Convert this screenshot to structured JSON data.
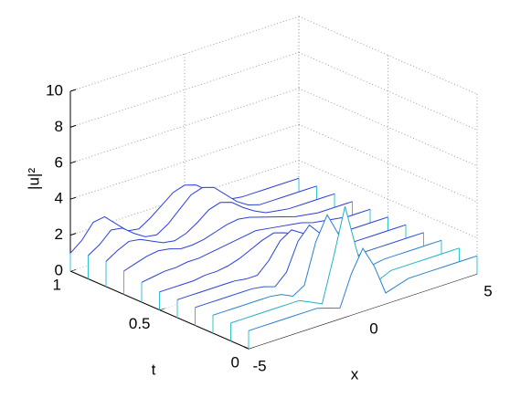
{
  "chart_data": {
    "type": "waterfall",
    "xlabel": "x",
    "ylabel": "t",
    "zlabel": "|u|²",
    "x": [
      -5,
      -4.5,
      -4,
      -3.5,
      -3,
      -2.5,
      -2,
      -1.5,
      -1,
      -0.5,
      0,
      0.5,
      1,
      1.5,
      2,
      2.5,
      3,
      3.5,
      4,
      4.5,
      5
    ],
    "xlim": [
      -5,
      5
    ],
    "xticks": [
      -5,
      0,
      5
    ],
    "ylim": [
      0,
      1
    ],
    "yticks": [
      0,
      0.5,
      1
    ],
    "zlim": [
      0,
      10
    ],
    "zticks": [
      0,
      2,
      4,
      6,
      8,
      10
    ],
    "grid": true,
    "edge_color": "#33c4d0",
    "series": [
      {
        "t": 1,
        "color": "#2b3fd8",
        "values": [
          1.0,
          1.5,
          2.3,
          2.4,
          1.8,
          1.2,
          1.1,
          1.5,
          2.0,
          2.5,
          2.7,
          2.5,
          2.0,
          1.5,
          1.1,
          1,
          1,
          1,
          1,
          1,
          1
        ]
      },
      {
        "t": 0.9,
        "color": "#2b3fd8",
        "values": [
          1.3,
          1.7,
          2.3,
          2.2,
          1.7,
          1.3,
          1.2,
          1.6,
          2.2,
          2.8,
          3.0,
          2.8,
          2.2,
          1.6,
          1.2,
          1,
          1,
          1,
          1,
          1,
          1
        ]
      },
      {
        "t": 0.8,
        "color": "#2b3fd8",
        "values": [
          1.4,
          1.8,
          2.1,
          2.0,
          1.7,
          1.4,
          1.3,
          1.5,
          1.9,
          2.4,
          2.6,
          2.4,
          1.9,
          1.5,
          1.2,
          1.1,
          1,
          1,
          1,
          1,
          1
        ]
      },
      {
        "t": 0.7,
        "color": "#2b3fd8",
        "values": [
          1.3,
          1.5,
          1.7,
          1.8,
          1.7,
          1.5,
          1.5,
          1.6,
          1.8,
          2.0,
          2.1,
          2.0,
          1.8,
          1.6,
          1.4,
          1.2,
          1.1,
          1,
          1,
          1,
          1
        ]
      },
      {
        "t": 0.6,
        "color": "#2b3fd8",
        "values": [
          1.1,
          1.2,
          1.3,
          1.3,
          1.4,
          1.4,
          1.5,
          1.6,
          1.7,
          1.8,
          1.9,
          1.8,
          1.7,
          1.6,
          1.5,
          1.3,
          1.2,
          1.1,
          1,
          1,
          1
        ]
      },
      {
        "t": 0.5,
        "color": "#2b3fd8",
        "values": [
          1,
          1,
          1,
          1,
          1.1,
          1.1,
          1.2,
          1.4,
          1.7,
          2.0,
          2.2,
          2.0,
          1.7,
          1.4,
          1.2,
          1.1,
          1,
          1,
          1,
          1,
          1
        ]
      },
      {
        "t": 0.4,
        "color": "#2b3fd8",
        "values": [
          1,
          1,
          1,
          1,
          1,
          1,
          0.9,
          0.9,
          1.5,
          2.4,
          2.8,
          2.4,
          1.5,
          0.9,
          0.9,
          1,
          1,
          1,
          1,
          1,
          1
        ]
      },
      {
        "t": 0.3,
        "color": "#2b50d8",
        "values": [
          1,
          1,
          1,
          1,
          1,
          1,
          0.9,
          0.7,
          1.3,
          2.8,
          3.5,
          2.8,
          1.3,
          0.7,
          0.9,
          1,
          1,
          1,
          1,
          1,
          1
        ]
      },
      {
        "t": 0.2,
        "color": "#2a80d0",
        "values": [
          1,
          1,
          1,
          1,
          1,
          1,
          0.9,
          0.6,
          1.0,
          3.2,
          4.5,
          3.2,
          1.0,
          0.6,
          0.9,
          1,
          1,
          1,
          1,
          1,
          1
        ]
      },
      {
        "t": 0.1,
        "color": "#22b0c0",
        "values": [
          1,
          1,
          1,
          1,
          1,
          1,
          1,
          0.7,
          0.4,
          2.8,
          5.4,
          2.8,
          0.4,
          0.7,
          1,
          1,
          1,
          1,
          1,
          1,
          1
        ]
      },
      {
        "t": 0,
        "color": "#2a80d0",
        "values": [
          1,
          1,
          1,
          1,
          1,
          1,
          1,
          0.8,
          0.6,
          2.3,
          3.5,
          2.3,
          0.6,
          0.8,
          1,
          1,
          1,
          1,
          1,
          1,
          1
        ]
      }
    ]
  }
}
